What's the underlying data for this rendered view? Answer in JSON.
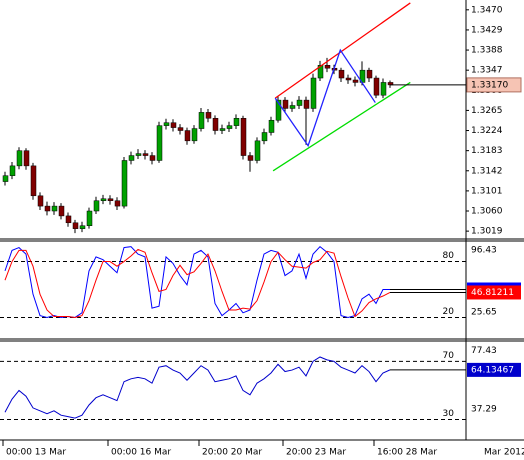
{
  "chart_data": [
    {
      "type": "candlestick",
      "categories": [
        "00:00 13 Mar",
        null,
        null,
        null,
        null,
        null,
        null,
        null,
        null,
        null,
        null,
        null,
        null,
        null,
        null,
        "00:00 16 Mar",
        null,
        null,
        null,
        null,
        null,
        null,
        null,
        null,
        null,
        null,
        null,
        null,
        "20:00 20 Mar",
        null,
        null,
        null,
        null,
        null,
        null,
        null,
        null,
        null,
        null,
        null,
        "20:00 23 Mar",
        null,
        null,
        null,
        null,
        null,
        null,
        null,
        null,
        null,
        null,
        null,
        null,
        "16:00 28 Mar",
        null,
        null
      ],
      "x_axis_note": "Mar 2012",
      "open": [
        1.312,
        1.3132,
        1.3152,
        1.3183,
        1.3152,
        1.3091,
        1.307,
        1.306,
        1.307,
        1.305,
        1.3036,
        1.3024,
        1.303,
        1.306,
        1.3081,
        1.3085,
        1.3081,
        1.307,
        1.3163,
        1.3173,
        1.3177,
        1.3173,
        1.3163,
        1.3234,
        1.324,
        1.323,
        1.3224,
        1.3203,
        1.3228,
        1.3261,
        1.3249,
        1.3224,
        1.3228,
        1.3234,
        1.3249,
        1.3173,
        1.3163,
        1.3203,
        1.322,
        1.3245,
        1.3286,
        1.3269,
        1.3275,
        1.3286,
        1.3269,
        1.3331,
        1.3357,
        1.3351,
        1.3347,
        1.3331,
        1.3327,
        1.3322,
        1.3347,
        1.3331,
        1.3296,
        1.3322
      ],
      "high": [
        1.314,
        1.316,
        1.319,
        1.3188,
        1.3158,
        1.3098,
        1.3079,
        1.3078,
        1.3076,
        1.3057,
        1.3042,
        1.3038,
        1.3067,
        1.3089,
        1.3093,
        1.3092,
        1.3088,
        1.317,
        1.3181,
        1.3186,
        1.3184,
        1.318,
        1.3242,
        1.3248,
        1.3247,
        1.3237,
        1.323,
        1.3235,
        1.327,
        1.3268,
        1.3255,
        1.3236,
        1.3242,
        1.3257,
        1.3254,
        1.318,
        1.321,
        1.3228,
        1.3252,
        1.3294,
        1.3292,
        1.3283,
        1.3294,
        1.3293,
        1.334,
        1.3366,
        1.3372,
        1.3358,
        1.3352,
        1.3338,
        1.3334,
        1.3365,
        1.3352,
        1.3336,
        1.333,
        1.3326
      ],
      "low": [
        1.3112,
        1.3125,
        1.3145,
        1.3144,
        1.3083,
        1.3062,
        1.3051,
        1.3052,
        1.3043,
        1.3028,
        1.3015,
        1.3017,
        1.3024,
        1.3054,
        1.3074,
        1.3073,
        1.3062,
        1.3065,
        1.3155,
        1.3166,
        1.3165,
        1.3155,
        1.3158,
        1.3226,
        1.3222,
        1.3216,
        1.3195,
        1.3197,
        1.3222,
        1.3241,
        1.3216,
        1.3217,
        1.3221,
        1.3227,
        1.3165,
        1.314,
        1.3157,
        1.3196,
        1.3214,
        1.324,
        1.3261,
        1.3262,
        1.3268,
        1.3195,
        1.3262,
        1.3325,
        1.3343,
        1.3339,
        1.3323,
        1.3319,
        1.3314,
        1.3316,
        1.3323,
        1.329,
        1.329,
        1.3311
      ],
      "close": [
        1.3132,
        1.3152,
        1.3183,
        1.3152,
        1.3091,
        1.307,
        1.306,
        1.307,
        1.305,
        1.3036,
        1.3024,
        1.303,
        1.306,
        1.3081,
        1.3085,
        1.3081,
        1.307,
        1.3163,
        1.3173,
        1.3177,
        1.3173,
        1.3163,
        1.3234,
        1.324,
        1.323,
        1.3224,
        1.3203,
        1.3228,
        1.3261,
        1.3249,
        1.3224,
        1.3228,
        1.3234,
        1.3249,
        1.3173,
        1.3163,
        1.3203,
        1.322,
        1.3245,
        1.3286,
        1.3269,
        1.3275,
        1.3286,
        1.3269,
        1.3331,
        1.3357,
        1.3351,
        1.3347,
        1.3331,
        1.3327,
        1.3322,
        1.3347,
        1.3331,
        1.3296,
        1.3322,
        1.3317
      ],
      "up_color": "#00a000",
      "down_color": "#800000",
      "wick_color": "#000000",
      "ylim": [
        1.3005,
        1.349
      ],
      "yticks": [
        {
          "value": 1.347,
          "label": "1.3470"
        },
        1.3429,
        1.3388,
        1.3347,
        1.3306,
        1.3265,
        1.3224,
        1.3183,
        1.3142,
        1.3101,
        {
          "value": 1.306,
          "label": "1.3060"
        },
        1.3019
      ],
      "current_price": {
        "value": 1.3317,
        "label": "1.33170",
        "color": "#f6c4b4"
      },
      "trendlines": [
        {
          "color": "#ff0000",
          "x": [
            38.6,
            57.9
          ],
          "y": [
            1.329,
            1.3484
          ]
        },
        {
          "color": "#00dd00",
          "x": [
            38.3,
            57.9
          ],
          "y": [
            1.3142,
            1.3322
          ]
        },
        {
          "color": "#2222ff",
          "x": [
            38.6,
            43.3,
            47.9,
            52.9
          ],
          "y": [
            1.329,
            1.3193,
            1.3388,
            1.3281
          ]
        }
      ]
    },
    {
      "type": "line",
      "ylim": [
        -1,
        101
      ],
      "levels": [
        80,
        20
      ],
      "scale_labels": [
        96.43,
        25.65
      ],
      "series": [
        {
          "color": "#0000ff",
          "values": [
            70,
            92,
            95,
            88,
            45,
            22,
            20,
            22,
            20,
            21,
            20,
            25,
            70,
            85,
            82,
            75,
            68,
            95,
            96,
            88,
            85,
            30,
            32,
            85,
            78,
            65,
            55,
            88,
            92,
            85,
            35,
            22,
            28,
            35,
            25,
            28,
            60,
            88,
            92,
            90,
            65,
            70,
            88,
            62,
            88,
            96,
            90,
            80,
            22,
            20,
            22,
            40,
            45,
            35,
            50,
            50
          ]
        },
        {
          "color": "#ff0000",
          "values": [
            60,
            80,
            92,
            92,
            75,
            45,
            28,
            21,
            21,
            21,
            20,
            22,
            38,
            60,
            80,
            80,
            75,
            80,
            86,
            93,
            90,
            68,
            48,
            50,
            65,
            76,
            66,
            69,
            78,
            88,
            70,
            48,
            28,
            28,
            30,
            29,
            38,
            58,
            80,
            90,
            82,
            75,
            74,
            73,
            79,
            82,
            91,
            89,
            64,
            41,
            21,
            27,
            36,
            40,
            43,
            46.81211
          ]
        }
      ]
    },
    {
      "type": "line",
      "ylim": [
        18,
        83.3
      ],
      "levels": [
        70,
        30
      ],
      "scale_labels": [
        77.43,
        37.29
      ],
      "series": [
        {
          "color": "#0000cc",
          "values": [
            35,
            44,
            50,
            46,
            38,
            36,
            34,
            36,
            33,
            32,
            31,
            33,
            40,
            45,
            47,
            45,
            43,
            56,
            58,
            59,
            58,
            55,
            66,
            67,
            64,
            62,
            57,
            62,
            67,
            64,
            56,
            57,
            58,
            60,
            50,
            47,
            55,
            58,
            62,
            68,
            63,
            64,
            66,
            60,
            70,
            73,
            71,
            70,
            66,
            64,
            62,
            67,
            63,
            56,
            62,
            64.13467
          ]
        }
      ]
    }
  ]
}
